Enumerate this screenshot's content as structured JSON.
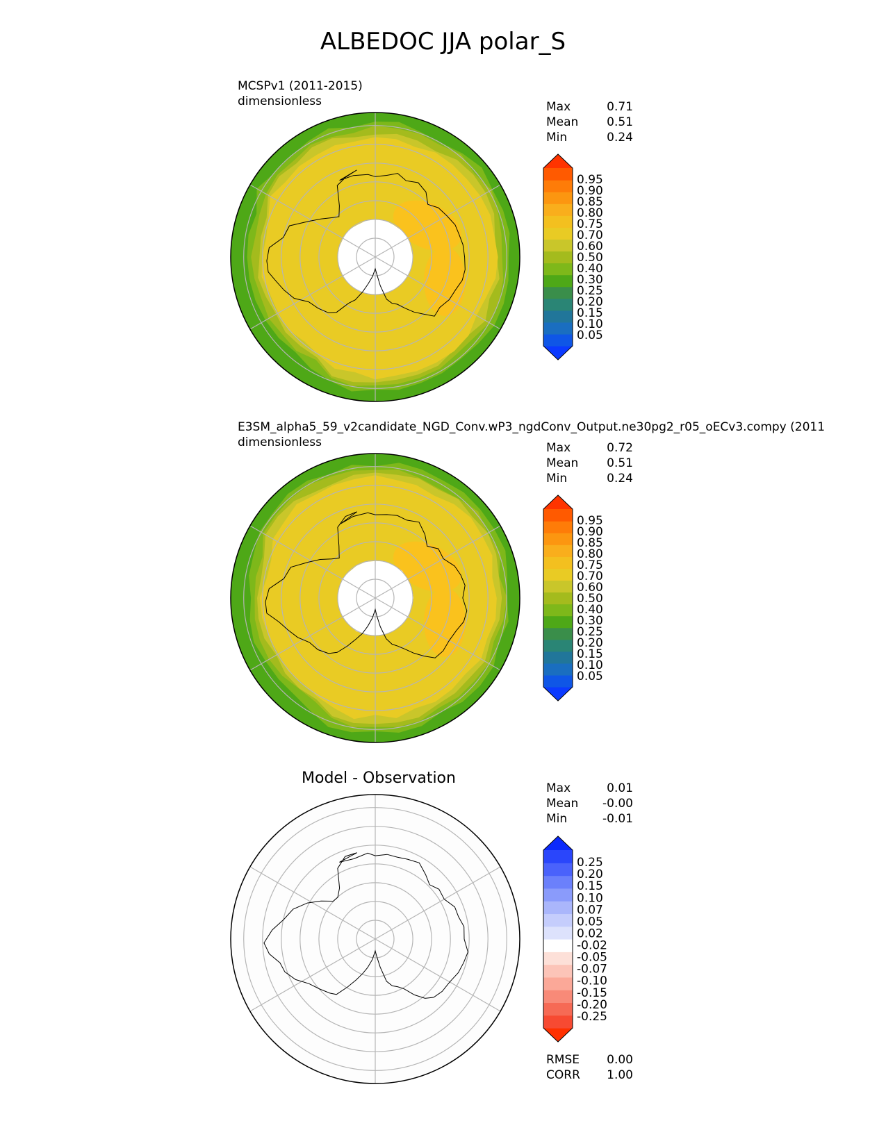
{
  "title": "ALBEDOC JJA polar_S",
  "panels": [
    {
      "id": "test",
      "subtitle_line1": "MCSPv1 (2011-2015)",
      "subtitle_line2": "dimensionless",
      "stats": [
        {
          "label": "Max",
          "value": "0.71"
        },
        {
          "label": "Mean",
          "value": "0.51"
        },
        {
          "label": "Min",
          "value": "0.24"
        }
      ]
    },
    {
      "id": "reference",
      "subtitle_line1": "E3SM_alpha5_59_v2candidate_NGD_Conv.wP3_ngdConv_Output.ne30pg2_r05_oECv3.compy (2011",
      "subtitle_line2": "dimensionless",
      "stats": [
        {
          "label": "Max",
          "value": "0.72"
        },
        {
          "label": "Mean",
          "value": "0.51"
        },
        {
          "label": "Min",
          "value": "0.24"
        }
      ]
    },
    {
      "id": "diff",
      "title": "Model - Observation",
      "stats": [
        {
          "label": "Max",
          "value": "0.01"
        },
        {
          "label": "Mean",
          "value": "-0.00"
        },
        {
          "label": "Min",
          "value": "-0.01"
        }
      ],
      "footer_stats": [
        {
          "label": "RMSE",
          "value": "0.00"
        },
        {
          "label": "CORR",
          "value": "1.00"
        }
      ]
    }
  ],
  "chart_data": [
    {
      "type": "heatmap",
      "projection": "south-polar-stereographic",
      "units": "dimensionless",
      "colorbar": {
        "ticks": [
          "0.05",
          "0.10",
          "0.15",
          "0.20",
          "0.25",
          "0.30",
          "0.40",
          "0.50",
          "0.60",
          "0.70",
          "0.75",
          "0.80",
          "0.85",
          "0.90",
          "0.95"
        ],
        "extend": "both",
        "colors": [
          "#0b3aff",
          "#0f56e6",
          "#1a6ec0",
          "#21769a",
          "#2a8575",
          "#3a8e4a",
          "#4ea817",
          "#7eb81a",
          "#a4bb1d",
          "#c9c62a",
          "#e9cb24",
          "#f3c01f",
          "#f9ae1c",
          "#fc9610",
          "#fe7c08",
          "#ff5a00",
          "#ff3400"
        ]
      },
      "field_levels": [
        {
          "value": 0.3,
          "color": "#4ea817"
        },
        {
          "value": 0.4,
          "color": "#7eb81a"
        },
        {
          "value": 0.5,
          "color": "#a4bb1d"
        },
        {
          "value": 0.6,
          "color": "#c9c62a"
        },
        {
          "value": 0.7,
          "color": "#e9cb24"
        },
        {
          "value": 0.75,
          "color": "#fac21d"
        }
      ]
    },
    {
      "type": "heatmap",
      "projection": "south-polar-stereographic",
      "units": "dimensionless",
      "colorbar": {
        "ticks": [
          "0.05",
          "0.10",
          "0.15",
          "0.20",
          "0.25",
          "0.30",
          "0.40",
          "0.50",
          "0.60",
          "0.70",
          "0.75",
          "0.80",
          "0.85",
          "0.90",
          "0.95"
        ],
        "extend": "both",
        "colors": [
          "#0b3aff",
          "#0f56e6",
          "#1a6ec0",
          "#21769a",
          "#2a8575",
          "#3a8e4a",
          "#4ea817",
          "#7eb81a",
          "#a4bb1d",
          "#c9c62a",
          "#e9cb24",
          "#f3c01f",
          "#f9ae1c",
          "#fc9610",
          "#fe7c08",
          "#ff5a00",
          "#ff3400"
        ]
      }
    },
    {
      "type": "heatmap",
      "projection": "south-polar-stereographic",
      "colorbar": {
        "ticks": [
          "0.25",
          "0.20",
          "0.15",
          "0.10",
          "0.07",
          "0.05",
          "0.02",
          "-0.02",
          "-0.05",
          "-0.07",
          "-0.10",
          "-0.15",
          "-0.20",
          "-0.25"
        ],
        "extend": "both",
        "colors": [
          "#ff3000",
          "#f74a32",
          "#f66a55",
          "#f88a78",
          "#fba898",
          "#fcc4b8",
          "#fde0d8",
          "#ffffff",
          "#dde2fc",
          "#c5cdfc",
          "#aab6fb",
          "#8a9bfb",
          "#6b80fb",
          "#4a62fb",
          "#2a46fb",
          "#0b2afb"
        ]
      }
    }
  ]
}
